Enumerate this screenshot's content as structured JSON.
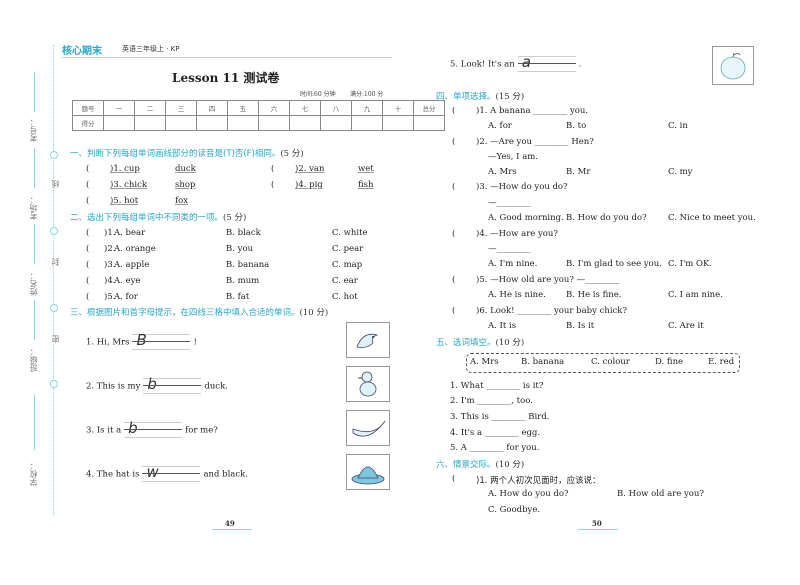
{
  "binding_margin": {
    "fields": [
      "考号：",
      "考场：",
      "姓名：",
      "班级：",
      "学校："
    ],
    "seal": [
      "线",
      "封",
      "密"
    ]
  },
  "left_page": {
    "brand": "核心期末",
    "series": "英语三年级上 · KP",
    "title": "Lesson 11 测试卷",
    "time": "时间:60 分钟",
    "full_score": "满分:100 分",
    "score_table": {
      "row_labels": [
        "题号",
        "得分"
      ],
      "columns": [
        "一",
        "二",
        "三",
        "四",
        "五",
        "六",
        "七",
        "八",
        "九",
        "十",
        "总分"
      ]
    },
    "section1": {
      "title": "一、判断下列每组单词画线部分的读音是(T)否(F)相同。",
      "points": "(5 分)",
      "items": [
        {
          "n": ")1. cup",
          "w": "duck"
        },
        {
          "n": ")2. van",
          "w": "wet"
        },
        {
          "n": ")3. chick",
          "w": "shop"
        },
        {
          "n": ")4. pig",
          "w": "fish"
        },
        {
          "n": ")5. hot",
          "w": "fox"
        }
      ]
    },
    "section2": {
      "title": "二、选出下列每组单词中不同类的一项。",
      "points": "(5 分)",
      "items": [
        [
          "A. bear",
          "B. black",
          "C. white"
        ],
        [
          "A. orange",
          "B. you",
          "C. pear"
        ],
        [
          "A. apple",
          "B. banana",
          "C. map"
        ],
        [
          "A. eye",
          "B. mum",
          "C. ear"
        ],
        [
          "A. for",
          "B. fat",
          "C. hot"
        ]
      ],
      "numbers": [
        ")1.",
        ")2.",
        ")3.",
        ")4.",
        ")5."
      ]
    },
    "section3": {
      "title": "三、根据图片和首字母提示，在四线三格中填入合适的单词。",
      "points": "(10 分)",
      "items": [
        {
          "pre": "1. Hi, Mrs",
          "letter": "B",
          "post": "!",
          "picture": "bird"
        },
        {
          "pre": "2. This is my",
          "letter": "b",
          "post": "duck.",
          "picture": "duck"
        },
        {
          "pre": "3. Is it a",
          "letter": "b",
          "post": "for me?",
          "picture": "banana"
        },
        {
          "pre": "4. The hat is",
          "letter": "w",
          "post": "and black.",
          "picture": "hat"
        }
      ]
    },
    "page_number": "49"
  },
  "right_page": {
    "s3_item5": {
      "pre": "5. Look! It's an",
      "letter": "a",
      "post": ".",
      "picture": "apple"
    },
    "section4": {
      "title": "四、单项选择。",
      "points": "(15 分)",
      "items": [
        {
          "lines": [
            ")1. A banana ________ you."
          ],
          "options": [
            "A. for",
            "B. to",
            "C. in"
          ]
        },
        {
          "lines": [
            ")2. —Are you ________ Hen?",
            "—Yes, I am."
          ],
          "options": [
            "A. Mrs",
            "B. Mr",
            "C. my"
          ]
        },
        {
          "lines": [
            ")3. —How do you do?",
            "—________"
          ],
          "options": [
            "A. Good morning.",
            "B. How do you do?",
            "C. Nice to meet you."
          ]
        },
        {
          "lines": [
            ")4. —How are you?",
            "—________"
          ],
          "options": [
            "A. I'm nine.",
            "B. I'm glad to see you.",
            "C. I'm OK."
          ]
        },
        {
          "lines": [
            ")5. —How old are you? —________"
          ],
          "options": [
            "A. He is nine.",
            "B. He is fine.",
            "C. I am nine."
          ]
        },
        {
          "lines": [
            ")6. Look! ________ your baby chick?"
          ],
          "options": [
            "A. It is",
            "B. Is it",
            "C. Are it"
          ]
        }
      ]
    },
    "section5": {
      "title": "五、选词填空。",
      "points": "(10 分)",
      "word_bank": [
        "A. Mrs",
        "B. banana",
        "C. colour",
        "D. fine",
        "E. red"
      ],
      "items": [
        "1. What ________ is it?",
        "2. I'm ________, too.",
        "3. This is ________ Bird.",
        "4. It's a ________ egg.",
        "5. A ________ for you."
      ]
    },
    "section6": {
      "title": "六、情景交际。",
      "points": "(10 分)",
      "items": [
        {
          "q": ")1. 两个人初次见面时，应该说：",
          "options": [
            "A. How do you do?",
            "B. How old are you?",
            "C. Goodbye."
          ]
        }
      ]
    },
    "page_number": "50"
  },
  "colors": {
    "accent": "#2aa6c9",
    "margin_line": "#8fd3e6"
  }
}
